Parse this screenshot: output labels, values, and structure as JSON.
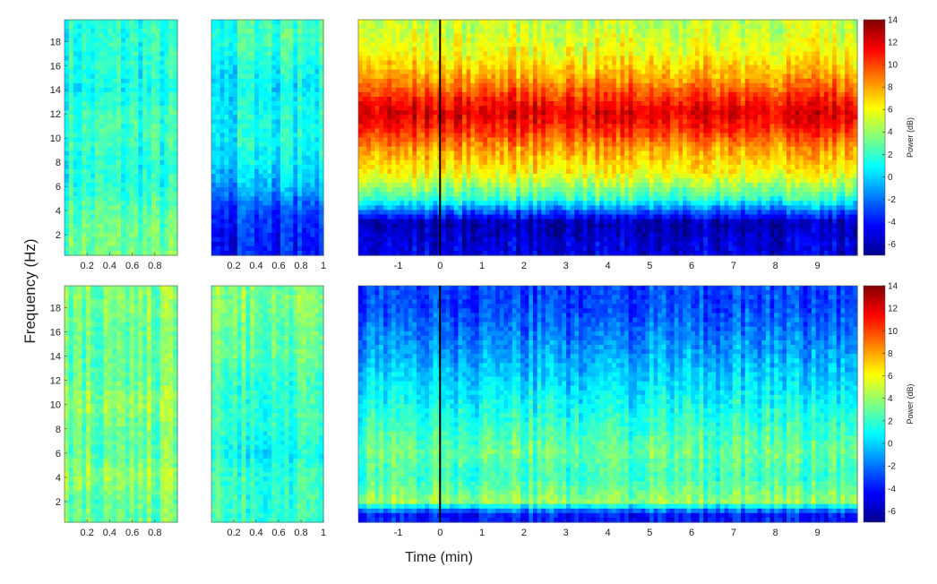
{
  "chart_data": {
    "type": "heatmap",
    "ylabel": "Frequency (Hz)",
    "xlabel": "Time (min)",
    "colorbar": {
      "label": "Power (dB)",
      "range": [
        -7,
        14
      ],
      "ticks": [
        "14",
        "12",
        "10",
        "8",
        "6",
        "4",
        "2",
        "0",
        "-2",
        "-4",
        "-6"
      ],
      "colormap": "jet"
    },
    "y_range": [
      0.3,
      19.8
    ],
    "y_ticks": [
      "2",
      "4",
      "6",
      "8",
      "10",
      "12",
      "14",
      "16",
      "18"
    ],
    "small_x_range": [
      0,
      1
    ],
    "small_x_ticks": [
      "0.2",
      "0.4",
      "0.6",
      "0.8"
    ],
    "small_x_ticks_b": [
      "0.2",
      "0.4",
      "0.6",
      "0.8",
      "1"
    ],
    "big_x_range": [
      -1.95,
      9.95
    ],
    "big_x_ticks": [
      "-1",
      "0",
      "1",
      "2",
      "3",
      "4",
      "5",
      "6",
      "7",
      "8",
      "9"
    ],
    "event_marker_time": 0,
    "panels": [
      {
        "id": "top-left-small",
        "power_by_frequency": {
          "2": 3,
          "4": 2.5,
          "6": 1.5,
          "8": 1.5,
          "10": 2,
          "12": 2,
          "14": 1,
          "16": 1.5,
          "18": 1.5
        }
      },
      {
        "id": "top-middle-small",
        "power_by_frequency": {
          "2": -4,
          "4": -3,
          "6": -1,
          "8": 0.5,
          "10": 1,
          "12": 1,
          "14": 0.5,
          "16": 1,
          "18": 2
        }
      },
      {
        "id": "top-main",
        "power_by_frequency": {
          "1": -5,
          "3": -6,
          "5": 2,
          "7": 6,
          "9": 8,
          "11": 11,
          "12": 12,
          "13": 11,
          "15": 8,
          "17": 6,
          "19": 5
        }
      },
      {
        "id": "bottom-left-small",
        "power_by_frequency": {
          "2": 3,
          "4": 4,
          "6": 3,
          "8": 3,
          "10": 4,
          "12": 3,
          "14": 3,
          "16": 3,
          "18": 3.5
        }
      },
      {
        "id": "bottom-middle-small",
        "power_by_frequency": {
          "2": 2,
          "4": 2,
          "6": 1,
          "8": 2,
          "10": 2,
          "12": 2,
          "14": 3,
          "16": 3,
          "18": 3.5
        }
      },
      {
        "id": "bottom-main",
        "power_by_frequency": {
          "1": -4,
          "2": 4,
          "4": 2,
          "6": 3,
          "8": 2,
          "10": 1,
          "12": 0,
          "14": -1,
          "16": -2,
          "18": -3
        }
      }
    ]
  }
}
